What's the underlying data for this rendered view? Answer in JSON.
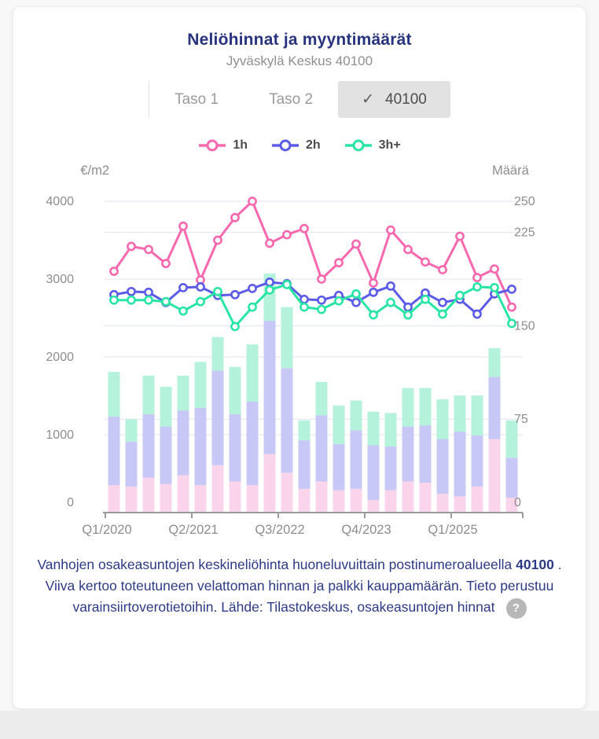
{
  "card": {
    "title": "Neliöhinnat ja myyntimäärät",
    "subtitle": "Jyväskylä Keskus 40100",
    "tabs": [
      {
        "label": "Taso 1",
        "selected": false
      },
      {
        "label": "Taso 2",
        "selected": false
      },
      {
        "label": "40100",
        "selected": true
      }
    ]
  },
  "icons": {
    "check": "✓",
    "help": "?"
  },
  "footer": {
    "text1": "Vanhojen osakeasuntojen keskineliöhinta huoneluvuittain postinumeroalueella ",
    "bold": "40100",
    "text2": " . Viiva kertoo toteutuneen velattoman hinnan ja palkki kauppamäärän. Tieto perustuu varainsiirtoverotietoihin. Lähde: Tilastokeskus, osakeasuntojen hinnat"
  },
  "theme": {
    "title_color": "#28337e",
    "subtitle_color": "#8f8f8f",
    "tab_text": "#9b9b9b",
    "tab_selected_bg": "#e2e2e2",
    "grid_color": "#e0e4f2",
    "axis_line_color": "#9a9a9a",
    "axis_text_color": "#8d8d8d",
    "footer_text_color": "#2c3a86",
    "help_badge_bg": "#b7b7b7"
  },
  "chart_data": {
    "type": "line+stacked-bar",
    "title": "Neliöhinnat ja myyntimäärät",
    "left_axis": {
      "label": "€/m2",
      "range": [
        0,
        4000
      ],
      "ticks": [
        0,
        1000,
        2000,
        3000,
        4000
      ]
    },
    "right_axis": {
      "label": "Määrä",
      "range": [
        0,
        250
      ],
      "ticks": [
        0,
        75,
        150,
        225,
        250
      ]
    },
    "x_tick_labels": [
      "Q1/2020",
      "Q2/2021",
      "Q3/2022",
      "Q4/2023",
      "Q1/2025"
    ],
    "quarters": [
      "Q1/2020",
      "Q2/2020",
      "Q3/2020",
      "Q4/2020",
      "Q1/2021",
      "Q2/2021",
      "Q3/2021",
      "Q4/2021",
      "Q1/2022",
      "Q2/2022",
      "Q3/2022",
      "Q4/2022",
      "Q1/2023",
      "Q2/2023",
      "Q3/2023",
      "Q4/2023",
      "Q1/2024",
      "Q2/2024",
      "Q3/2024",
      "Q4/2024",
      "Q1/2025",
      "Q2/2025",
      "Q3/2025",
      "Q4/2025"
    ],
    "grid": true,
    "legend_position": "top",
    "lines": [
      {
        "name": "1h",
        "color": "#f768af",
        "axis": "left",
        "values": [
          3100,
          3420,
          3380,
          3200,
          3680,
          2990,
          3500,
          3790,
          4000,
          3460,
          3570,
          3650,
          3000,
          3210,
          3450,
          2950,
          3630,
          3380,
          3220,
          3120,
          3550,
          3020,
          3130,
          2640
        ]
      },
      {
        "name": "2h",
        "color": "#5b5be8",
        "axis": "left",
        "values": [
          2800,
          2840,
          2830,
          2700,
          2890,
          2900,
          2790,
          2800,
          2880,
          2960,
          2940,
          2740,
          2730,
          2790,
          2700,
          2830,
          2910,
          2640,
          2820,
          2700,
          2740,
          2550,
          2810,
          2870
        ]
      },
      {
        "name": "3h+",
        "color": "#29e5a4",
        "axis": "left",
        "values": [
          2730,
          2730,
          2730,
          2710,
          2590,
          2710,
          2840,
          2390,
          2640,
          2860,
          2930,
          2640,
          2610,
          2720,
          2810,
          2540,
          2700,
          2540,
          2740,
          2550,
          2790,
          2900,
          2890,
          2430
        ]
      }
    ],
    "bar_series": [
      {
        "name": "1h",
        "color": "#fad4ea",
        "axis": "right",
        "values": [
          22,
          21,
          28,
          23,
          30,
          22,
          38,
          25,
          22,
          47,
          32,
          19,
          25,
          18,
          19,
          10,
          18,
          25,
          24,
          15,
          13,
          21,
          59,
          12
        ]
      },
      {
        "name": "2h",
        "color": "#c7c8f5",
        "axis": "right",
        "values": [
          55,
          36,
          51,
          46,
          52,
          62,
          76,
          54,
          67,
          107,
          84,
          39,
          53,
          37,
          47,
          44,
          35,
          44,
          46,
          44,
          52,
          41,
          50,
          32
        ]
      },
      {
        "name": "3h+",
        "color": "#b4f2dc",
        "axis": "right",
        "values": [
          36,
          18,
          31,
          32,
          28,
          37,
          27,
          38,
          46,
          38,
          49,
          16,
          27,
          31,
          24,
          27,
          27,
          31,
          30,
          32,
          29,
          32,
          23,
          30
        ]
      }
    ]
  }
}
